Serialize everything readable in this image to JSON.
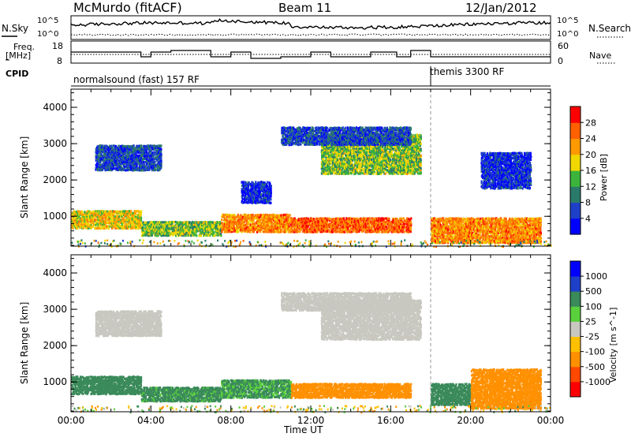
{
  "header": {
    "station": "McMurdo (fitACF)",
    "beam": "Beam 11",
    "date": "12/Jan/2012"
  },
  "noise_panel": {
    "left_label": "N.Sky",
    "right_label": "N.Search",
    "left_ticks": [
      "10^5",
      "10^0"
    ],
    "right_ticks": [
      "10^5",
      "10^0"
    ]
  },
  "freq_panel": {
    "left_label_1": "Freq.",
    "left_label_2": "[MHz]",
    "right_label": "Nave",
    "left_ticks": [
      "18",
      "8"
    ],
    "right_ticks": [
      "60",
      "0"
    ]
  },
  "cpid_panel": {
    "label": "CPID",
    "segments": [
      {
        "name": "normalsound (fast) 157 RF",
        "start_hour": 0,
        "end_hour": 18
      },
      {
        "name": "themis 3300 RF",
        "start_hour": 18,
        "end_hour": 24
      }
    ]
  },
  "colors": {
    "power_scale": [
      "#0000ff",
      "#1e40c8",
      "#2a7a6a",
      "#3cb43c",
      "#f0d800",
      "#ff9900",
      "#ff6000",
      "#ff0000"
    ],
    "velocity_scale": [
      "#ff0000",
      "#ff4800",
      "#ff9000",
      "#ffc000",
      "#c8c8c0",
      "#5ad03c",
      "#3a8a5a",
      "#1e40c8",
      "#0000ff"
    ]
  },
  "chart_data": [
    {
      "type": "heatmap",
      "title": "",
      "xlabel": "Time UT",
      "ylabel": "Slant Range [km]",
      "xlim": [
        0,
        24
      ],
      "ylim": [
        180,
        4500
      ],
      "x_ticks": [
        "00:00",
        "04:00",
        "08:00",
        "12:00",
        "16:00",
        "20:00",
        "00:00"
      ],
      "y_ticks": [
        "1000",
        "2000",
        "3000",
        "4000"
      ],
      "colorbar": {
        "label": "Power [dB]",
        "ticks": [
          "4",
          "8",
          "12",
          "16",
          "20",
          "24",
          "28"
        ],
        "range": [
          0,
          30
        ]
      },
      "regions": [
        {
          "t0": 0.0,
          "t1": 3.5,
          "r0": 700,
          "r1": 1200,
          "level": 18
        },
        {
          "t0": 1.2,
          "t1": 4.5,
          "r0": 2300,
          "r1": 3000,
          "level": 6
        },
        {
          "t0": 3.5,
          "t1": 7.5,
          "r0": 500,
          "r1": 900,
          "level": 14
        },
        {
          "t0": 7.5,
          "t1": 11.0,
          "r0": 600,
          "r1": 1100,
          "level": 22
        },
        {
          "t0": 8.5,
          "t1": 10.0,
          "r0": 1400,
          "r1": 2000,
          "level": 4
        },
        {
          "t0": 11.0,
          "t1": 17.0,
          "r0": 600,
          "r1": 1000,
          "level": 24
        },
        {
          "t0": 12.5,
          "t1": 17.5,
          "r0": 2200,
          "r1": 3300,
          "level": 14
        },
        {
          "t0": 10.5,
          "t1": 17.0,
          "r0": 3000,
          "r1": 3500,
          "level": 6
        },
        {
          "t0": 18.0,
          "t1": 23.5,
          "r0": 300,
          "r1": 1000,
          "level": 22
        },
        {
          "t0": 20.5,
          "t1": 23.0,
          "r0": 1800,
          "r1": 2800,
          "level": 4
        }
      ]
    },
    {
      "type": "heatmap",
      "title": "",
      "xlabel": "Time UT",
      "ylabel": "Slant Range [km]",
      "xlim": [
        0,
        24
      ],
      "ylim": [
        180,
        4500
      ],
      "x_ticks": [
        "00:00",
        "04:00",
        "08:00",
        "12:00",
        "16:00",
        "20:00",
        "00:00"
      ],
      "y_ticks": [
        "1000",
        "2000",
        "3000",
        "4000"
      ],
      "colorbar": {
        "label": "Velocity [m s^-1]",
        "ticks": [
          "1000",
          "500",
          "100",
          "25",
          "-25",
          "-100",
          "-500",
          "-1000"
        ],
        "range": [
          -1200,
          1200
        ]
      },
      "regions": [
        {
          "t0": 0.0,
          "t1": 3.5,
          "r0": 700,
          "r1": 1200,
          "level": 300
        },
        {
          "t0": 1.2,
          "t1": 4.5,
          "r0": 2300,
          "r1": 3000,
          "level": 0
        },
        {
          "t0": 3.5,
          "t1": 7.5,
          "r0": 500,
          "r1": 900,
          "level": 150
        },
        {
          "t0": 7.5,
          "t1": 11.0,
          "r0": 600,
          "r1": 1100,
          "level": 120
        },
        {
          "t0": 11.0,
          "t1": 17.0,
          "r0": 600,
          "r1": 1000,
          "level": -300
        },
        {
          "t0": 12.5,
          "t1": 17.5,
          "r0": 2200,
          "r1": 3300,
          "level": 0
        },
        {
          "t0": 10.5,
          "t1": 17.0,
          "r0": 3000,
          "r1": 3500,
          "level": 0
        },
        {
          "t0": 18.0,
          "t1": 20.0,
          "r0": 400,
          "r1": 1000,
          "level": 300
        },
        {
          "t0": 20.0,
          "t1": 23.5,
          "r0": 300,
          "r1": 1400,
          "level": -300
        }
      ]
    }
  ]
}
